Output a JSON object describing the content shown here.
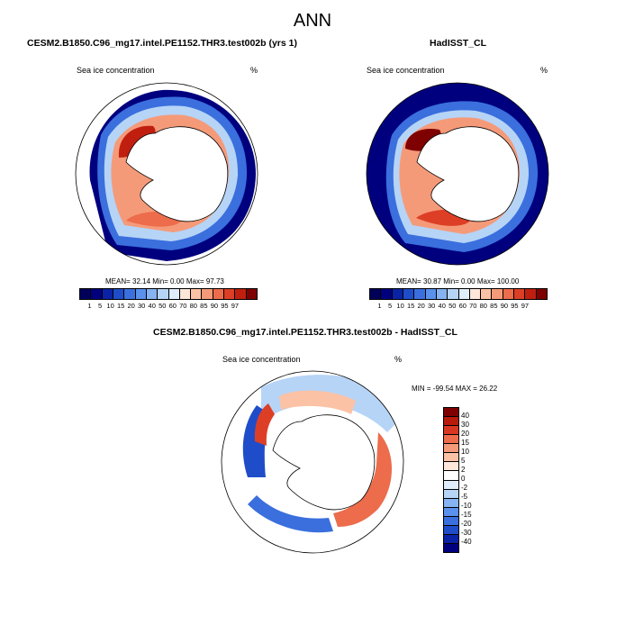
{
  "chart_data": [
    {
      "type": "heatmap",
      "projection": "south-polar-stereographic",
      "title": "CESM2.B1850.C96_mg17.intel.PE1152.THR3.test002b (yrs 1)",
      "left_label": "Sea ice concentration",
      "unit": "%",
      "stats": "MEAN=  32.14  Min=   0.00  Max=  97.73",
      "mean": 32.14,
      "min": 0.0,
      "max": 97.73,
      "colorbar_ticks": [
        "1",
        "5",
        "10",
        "15",
        "20",
        "30",
        "40",
        "50",
        "60",
        "70",
        "80",
        "85",
        "90",
        "95",
        "97"
      ]
    },
    {
      "type": "heatmap",
      "projection": "south-polar-stereographic",
      "title": "HadISST_CL",
      "left_label": "Sea ice concentration",
      "unit": "%",
      "stats": "MEAN=  30.87  Min=   0.00  Max=  100.00",
      "mean": 30.87,
      "min": 0.0,
      "max": 100.0,
      "colorbar_ticks": [
        "1",
        "5",
        "10",
        "15",
        "20",
        "30",
        "40",
        "50",
        "60",
        "70",
        "80",
        "85",
        "90",
        "95",
        "97"
      ]
    },
    {
      "type": "heatmap",
      "projection": "south-polar-stereographic",
      "title": "CESM2.B1850.C96_mg17.intel.PE1152.THR3.test002b - HadISST_CL",
      "left_label": "Sea ice concentration",
      "unit": "%",
      "stats": "MIN = -99.54  MAX =  26.22",
      "min": -99.54,
      "max": 26.22,
      "colorbar_ticks": [
        "40",
        "30",
        "20",
        "15",
        "10",
        "5",
        "2",
        "0",
        "-2",
        "-5",
        "-10",
        "-15",
        "-20",
        "-30",
        "-40"
      ]
    }
  ],
  "figure": {
    "title": "ANN",
    "seq_colors": [
      "#00007f",
      "#0a23a6",
      "#1f4dc9",
      "#3a6fdd",
      "#5a91ec",
      "#86b3f2",
      "#b6d4f6",
      "#e0eefb",
      "#fde6da",
      "#fbc2a6",
      "#f59a79",
      "#ec6c4c",
      "#dd3f26",
      "#c01f10",
      "#7f0000"
    ],
    "div_colors": [
      "#7f0000",
      "#b81a0c",
      "#d83821",
      "#ec6c4c",
      "#f59a79",
      "#fbc2a6",
      "#fde6da",
      "#ffffff",
      "#e0eefb",
      "#b6d4f6",
      "#86b3f2",
      "#5a91ec",
      "#3a6fdd",
      "#1f4dc9",
      "#0a23a6",
      "#00007f"
    ]
  }
}
